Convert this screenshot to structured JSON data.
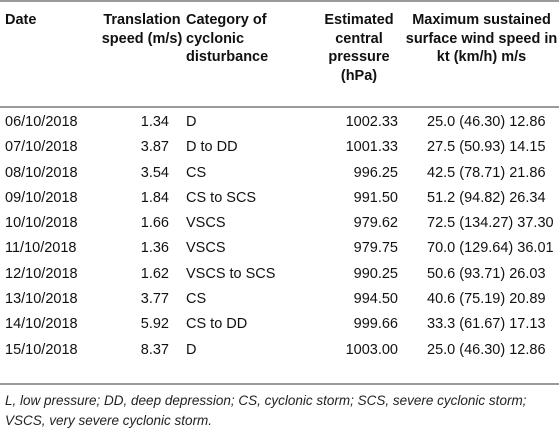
{
  "headers": {
    "date": "Date",
    "speed": "Translation speed (m/s)",
    "category": "Category of cyclonic disturbance",
    "pressure": "Estimated central pressure (hPa)",
    "wind": "Maximum sustained surface wind speed in kt (km/h) m/s"
  },
  "rows": [
    {
      "date": "06/10/2018",
      "speed": "1.34",
      "category": "D",
      "pressure": "1002.33",
      "wind": "25.0 (46.30) 12.86"
    },
    {
      "date": "07/10/2018",
      "speed": "3.87",
      "category": "D to DD",
      "pressure": "1001.33",
      "wind": "27.5 (50.93) 14.15"
    },
    {
      "date": "08/10/2018",
      "speed": "3.54",
      "category": "CS",
      "pressure": "996.25",
      "wind": "42.5 (78.71) 21.86"
    },
    {
      "date": "09/10/2018",
      "speed": "1.84",
      "category": "CS to SCS",
      "pressure": "991.50",
      "wind": "51.2 (94.82) 26.34"
    },
    {
      "date": "10/10/2018",
      "speed": "1.66",
      "category": "VSCS",
      "pressure": "979.62",
      "wind": "72.5 (134.27) 37.30"
    },
    {
      "date": "11/10/2018",
      "speed": "1.36",
      "category": "VSCS",
      "pressure": "979.75",
      "wind": "70.0 (129.64) 36.01"
    },
    {
      "date": "12/10/2018",
      "speed": "1.62",
      "category": "VSCS to SCS",
      "pressure": "990.25",
      "wind": "50.6 (93.71) 26.03"
    },
    {
      "date": "13/10/2018",
      "speed": "3.77",
      "category": "CS",
      "pressure": "994.50",
      "wind": "40.6 (75.19) 20.89"
    },
    {
      "date": "14/10/2018",
      "speed": "5.92",
      "category": "CS to DD",
      "pressure": "999.66",
      "wind": "33.3 (61.67) 17.13"
    },
    {
      "date": "15/10/2018",
      "speed": "8.37",
      "category": "D",
      "pressure": "1003.00",
      "wind": "25.0 (46.30) 12.86"
    }
  ],
  "footnote": "L, low pressure; DD, deep depression; CS, cyclonic storm; SCS, severe cyclonic storm; VSCS, very severe cyclonic storm."
}
